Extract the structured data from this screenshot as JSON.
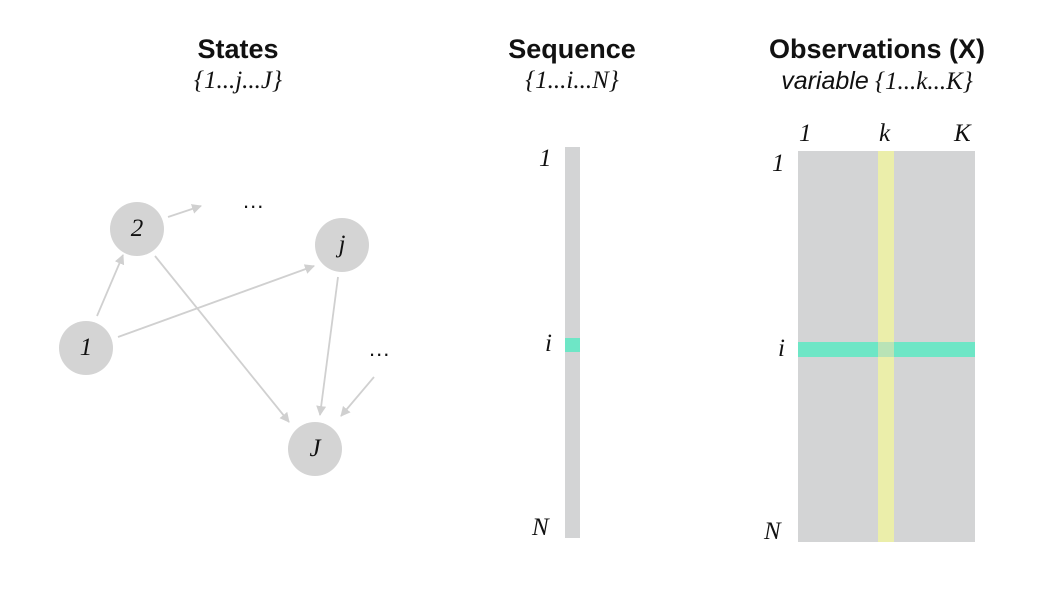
{
  "colors": {
    "node_fill": "#d4d4d4",
    "edge": "#d0d0d0",
    "matrix_fill": "#d3d4d5",
    "row_highlight": "#6ee6c6",
    "column_highlight": "#ebeeaa",
    "intersection": "#b9e3b6",
    "text": "#111111"
  },
  "states": {
    "title": "States",
    "subtitle": "{1...j...J}",
    "nodes": [
      {
        "id": "1",
        "label": "1"
      },
      {
        "id": "2",
        "label": "2"
      },
      {
        "id": "j",
        "label": "j"
      },
      {
        "id": "J",
        "label": "J"
      }
    ],
    "ellipsis_top": "...",
    "ellipsis_right": "...",
    "edges": [
      {
        "from": "1",
        "to": "2"
      },
      {
        "from": "1",
        "to": "j"
      },
      {
        "from": "2",
        "to": "..."
      },
      {
        "from": "2",
        "to": "J"
      },
      {
        "from": "j",
        "to": "J"
      },
      {
        "from": "...",
        "to": "J"
      }
    ]
  },
  "sequence": {
    "title": "Sequence",
    "subtitle": "{1...i...N}",
    "label_top": "1",
    "label_mid": "i",
    "label_bottom": "N"
  },
  "observations": {
    "title": "Observations (X)",
    "subtitle_prefix": "variable",
    "subtitle_range": "{1...k...K}",
    "col_label_first": "1",
    "col_label_mid": "k",
    "col_label_last": "K",
    "row_label_first": "1",
    "row_label_mid": "i",
    "row_label_last": "N"
  }
}
